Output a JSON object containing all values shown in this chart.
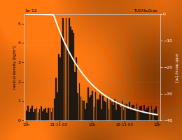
{
  "title_annotation": "TUGAkuGraz",
  "xlabel_ticks": [
    "12h",
    "21-11-03",
    "12h",
    "22-11-03",
    "12h"
  ],
  "ylabel_left": "neutral density [kg/m³]",
  "ylabel_right": "orbit decay [m]",
  "ylim_left": [
    0,
    5.5
  ],
  "ylim_right": [
    -40,
    0
  ],
  "yticks_left": [
    0,
    1,
    2,
    3,
    4,
    5
  ],
  "yticks_right": [
    0,
    -10,
    -20,
    -30,
    -40
  ],
  "scale_annotation": "1e-12",
  "bar_color": "#101010",
  "line_color": "#ffffff",
  "grid_color": "#888888",
  "n_bars": 90,
  "figsize": [
    2.6,
    2.0
  ],
  "dpi": 100,
  "solar_base_color": [
    0.78,
    0.43,
    0.08
  ],
  "solar_dark_color": [
    0.35,
    0.18,
    0.02
  ]
}
